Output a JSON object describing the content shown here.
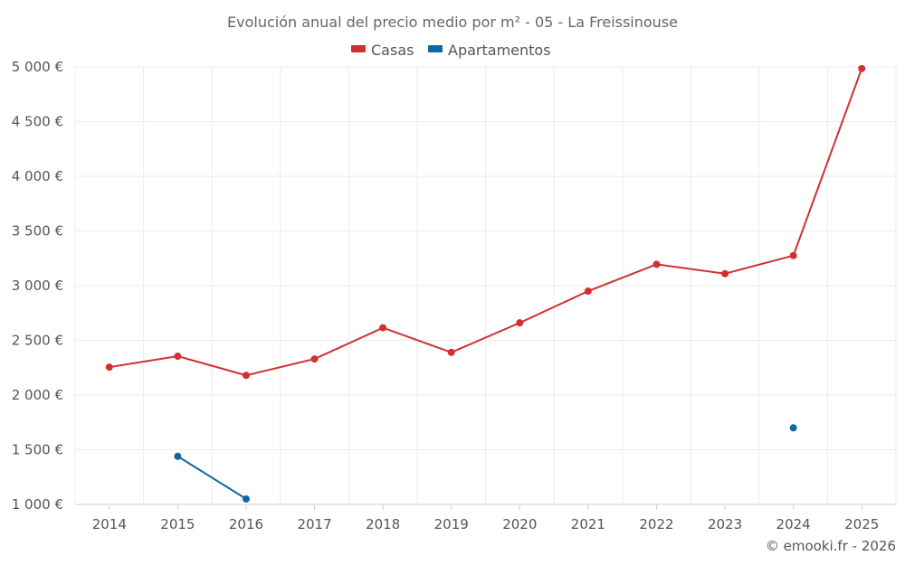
{
  "chart_data": {
    "type": "line",
    "title": "Evolución anual del precio medio por m² - 05 - La Freissinouse",
    "x": [
      "2014",
      "2015",
      "2016",
      "2017",
      "2018",
      "2019",
      "2020",
      "2021",
      "2022",
      "2023",
      "2024",
      "2025"
    ],
    "ylim": [
      1000,
      5000
    ],
    "yticks": [
      1000,
      1500,
      2000,
      2500,
      3000,
      3500,
      4000,
      4500,
      5000
    ],
    "ytick_labels": [
      "1 000 €",
      "1 500 €",
      "2 000 €",
      "2 500 €",
      "3 000 €",
      "3 500 €",
      "4 000 €",
      "4 500 €",
      "5 000 €"
    ],
    "grid": true,
    "legend_position": "top-center",
    "series": [
      {
        "name": "Casas",
        "color": "#d32f2f",
        "values": [
          2255,
          2355,
          2180,
          2330,
          2615,
          2390,
          2660,
          2950,
          3195,
          3110,
          3275,
          4985
        ]
      },
      {
        "name": "Apartamentos",
        "color": "#0b6aa2",
        "values": [
          null,
          1440,
          1050,
          null,
          null,
          null,
          null,
          null,
          null,
          null,
          1700,
          null
        ]
      }
    ]
  },
  "credit": "© emooki.fr - 2026"
}
